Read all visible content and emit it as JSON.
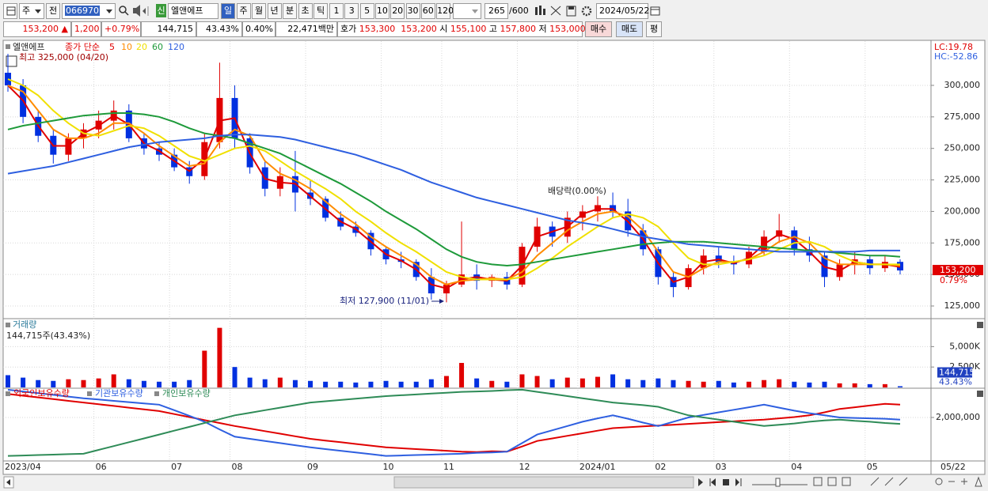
{
  "toolbar": {
    "market": "주",
    "prev": "전",
    "code": "066970",
    "badge": "신",
    "name": "엘앤에프",
    "periods": [
      "일",
      "주",
      "월",
      "년",
      "분",
      "초",
      "틱"
    ],
    "intervals": [
      "1",
      "3",
      "5",
      "10",
      "20",
      "30",
      "60",
      "120"
    ],
    "count": "265",
    "max": "/600",
    "date": "2024/05/22"
  },
  "quote": {
    "price": "153,200",
    "arrow": "▲",
    "change": "1,200",
    "rate": "+0.79%",
    "volume": "144,715",
    "volume_ratio": "43.43%",
    "turnover": "0.40%",
    "amount": "22,471백만",
    "ask_label": "호가",
    "ask": "153,300",
    "bid": "153,200",
    "open_label": "시",
    "open": "155,100",
    "high_label": "고",
    "high": "157,800",
    "low_label": "저",
    "low": "153,000",
    "buy": "매수",
    "sell": "매도",
    "avg": "평"
  },
  "chart_data": [
    {
      "type": "candlestick",
      "name": "엘앤에프",
      "legend_prefix": "종가 단순",
      "up_color": "#e00000",
      "down_color": "#0030e0",
      "categories": [
        "2023/04",
        null,
        null,
        null,
        null,
        null,
        "06",
        null,
        null,
        null,
        null,
        "07",
        null,
        null,
        null,
        "08",
        null,
        null,
        null,
        null,
        "09",
        null,
        null,
        null,
        null,
        "10",
        null,
        null,
        null,
        "11",
        null,
        null,
        null,
        null,
        "12",
        null,
        null,
        null,
        "2024/01",
        null,
        null,
        null,
        null,
        "02",
        null,
        null,
        null,
        "03",
        null,
        null,
        null,
        null,
        "04",
        null,
        null,
        null,
        null,
        "05",
        null,
        null
      ],
      "date_label": "05/22",
      "candles": {
        "open": [
          310000,
          300000,
          275000,
          260000,
          245000,
          258000,
          265000,
          272000,
          280000,
          258000,
          250000,
          245000,
          235000,
          228000,
          255000,
          290000,
          258000,
          235000,
          218000,
          228000,
          215000,
          210000,
          195000,
          188000,
          183000,
          170000,
          162000,
          160000,
          148000,
          135000,
          142000,
          150000,
          145000,
          148000,
          142000,
          172000,
          188000,
          180000,
          195000,
          200000,
          205000,
          200000,
          185000,
          170000,
          148000,
          140000,
          155000,
          165000,
          160000,
          158000,
          168000,
          180000,
          185000,
          170000,
          165000,
          148000,
          158000,
          162000,
          155000,
          160000
        ],
        "high": [
          325000,
          305000,
          280000,
          265000,
          262000,
          270000,
          280000,
          288000,
          285000,
          262000,
          255000,
          250000,
          240000,
          262000,
          318000,
          300000,
          262000,
          240000,
          235000,
          248000,
          225000,
          212000,
          200000,
          192000,
          185000,
          172000,
          168000,
          162000,
          155000,
          145000,
          192000,
          158000,
          150000,
          152000,
          175000,
          195000,
          192000,
          200000,
          205000,
          212000,
          215000,
          210000,
          190000,
          172000,
          152000,
          158000,
          170000,
          172000,
          165000,
          172000,
          185000,
          198000,
          188000,
          180000,
          168000,
          162000,
          168000,
          165000,
          165000,
          162000
        ],
        "low": [
          295000,
          270000,
          255000,
          238000,
          240000,
          250000,
          258000,
          265000,
          255000,
          245000,
          240000,
          232000,
          222000,
          225000,
          250000,
          250000,
          230000,
          212000,
          212000,
          200000,
          205000,
          192000,
          185000,
          180000,
          165000,
          158000,
          155000,
          145000,
          130000,
          127900,
          140000,
          138000,
          140000,
          138000,
          140000,
          168000,
          172000,
          175000,
          185000,
          192000,
          195000,
          180000,
          165000,
          142000,
          132000,
          138000,
          150000,
          155000,
          150000,
          155000,
          165000,
          175000,
          165000,
          160000,
          140000,
          145000,
          150000,
          150000,
          152000,
          150000
        ],
        "close": [
          300000,
          275000,
          260000,
          245000,
          258000,
          265000,
          272000,
          280000,
          258000,
          250000,
          245000,
          235000,
          228000,
          255000,
          290000,
          258000,
          235000,
          218000,
          228000,
          215000,
          210000,
          195000,
          188000,
          183000,
          170000,
          162000,
          160000,
          148000,
          135000,
          142000,
          150000,
          145000,
          148000,
          142000,
          172000,
          188000,
          180000,
          195000,
          200000,
          205000,
          200000,
          185000,
          170000,
          148000,
          140000,
          155000,
          165000,
          160000,
          158000,
          168000,
          180000,
          185000,
          170000,
          165000,
          148000,
          158000,
          162000,
          155000,
          160000,
          153200
        ]
      },
      "series": [
        {
          "name": "5",
          "color": "#e00000",
          "values": [
            300000,
            288000,
            268000,
            252000,
            252000,
            262000,
            268000,
            276000,
            269000,
            254000,
            248000,
            240000,
            232000,
            242000,
            272000,
            274000,
            246000,
            226000,
            223000,
            222000,
            212000,
            202000,
            192000,
            186000,
            176000,
            166000,
            161000,
            154000,
            142000,
            139000,
            146000,
            148000,
            146000,
            145000,
            157000,
            180000,
            184000,
            188000,
            198000,
            202000,
            202000,
            192000,
            178000,
            159000,
            144000,
            148000,
            160000,
            162000,
            159000,
            163000,
            174000,
            182000,
            178000,
            168000,
            156000,
            153000,
            160000,
            158000,
            158000,
            156000
          ]
        },
        {
          "name": "10",
          "color": "#ff8c00",
          "values": [
            300000,
            295000,
            280000,
            265000,
            258000,
            258000,
            262000,
            270000,
            270000,
            262000,
            252000,
            244000,
            236000,
            238000,
            255000,
            265000,
            260000,
            240000,
            230000,
            225000,
            218000,
            208000,
            198000,
            190000,
            180000,
            172000,
            165000,
            158000,
            148000,
            142000,
            145000,
            146000,
            147000,
            146000,
            152000,
            165000,
            175000,
            185000,
            192000,
            198000,
            200000,
            196000,
            185000,
            168000,
            152000,
            148000,
            155000,
            160000,
            160000,
            162000,
            168000,
            176000,
            180000,
            175000,
            163000,
            158000,
            158000,
            158000,
            158000,
            157000
          ]
        },
        {
          "name": "20",
          "color": "#f0e000",
          "values": [
            305000,
            300000,
            292000,
            280000,
            270000,
            262000,
            260000,
            264000,
            268000,
            266000,
            260000,
            252000,
            244000,
            240000,
            245000,
            250000,
            252000,
            248000,
            240000,
            232000,
            225000,
            218000,
            210000,
            200000,
            192000,
            183000,
            175000,
            168000,
            160000,
            152000,
            148000,
            146000,
            146000,
            146000,
            148000,
            155000,
            163000,
            172000,
            180000,
            188000,
            195000,
            198000,
            195000,
            188000,
            175000,
            163000,
            158000,
            158000,
            160000,
            162000,
            165000,
            170000,
            175000,
            176000,
            172000,
            165000,
            160000,
            158000,
            158000,
            158000
          ]
        },
        {
          "name": "60",
          "color": "#1e9a3a",
          "values": [
            265000,
            268000,
            270000,
            272000,
            274000,
            276000,
            277000,
            278000,
            278000,
            277000,
            275000,
            271000,
            266000,
            262000,
            260000,
            258000,
            254000,
            250000,
            246000,
            240000,
            234000,
            228000,
            222000,
            215000,
            208000,
            200000,
            193000,
            186000,
            178000,
            170000,
            164000,
            160000,
            158000,
            157000,
            158000,
            160000,
            162000,
            164000,
            166000,
            168000,
            170000,
            172000,
            174000,
            175000,
            176000,
            176000,
            176000,
            175000,
            174000,
            173000,
            172000,
            171000,
            170000,
            169000,
            168000,
            167000,
            166000,
            165000,
            165000,
            164000
          ]
        },
        {
          "name": "120",
          "color": "#2e5fe0",
          "values": [
            230000,
            232000,
            234000,
            236000,
            239000,
            242000,
            245000,
            248000,
            251000,
            253000,
            255000,
            256000,
            257000,
            258000,
            260000,
            261000,
            261000,
            260000,
            259000,
            257000,
            254000,
            251000,
            248000,
            245000,
            241000,
            237000,
            233000,
            228000,
            223000,
            219000,
            215000,
            211000,
            208000,
            205000,
            202000,
            199000,
            196000,
            193000,
            191000,
            189000,
            186000,
            183000,
            180000,
            178000,
            176000,
            174000,
            173000,
            172000,
            171000,
            170000,
            169000,
            168000,
            168000,
            168000,
            168000,
            168000,
            168000,
            169000,
            169000,
            169000
          ]
        }
      ],
      "ylim": [
        115600,
        335100
      ],
      "yticks": [
        {
          "value": 125000,
          "label": "125,000"
        },
        {
          "value": 150000,
          "label": "150,000"
        },
        {
          "value": 175000,
          "label": "175,000"
        },
        {
          "value": 200000,
          "label": "200,000"
        },
        {
          "value": 225000,
          "label": "225,000"
        },
        {
          "value": 250000,
          "label": "250,000"
        },
        {
          "value": 275000,
          "label": "275,000"
        },
        {
          "value": 300000,
          "label": "300,000"
        }
      ],
      "grid": true,
      "high_label": "최고 325,000 (04/20)",
      "low_label": "최저 127,900 (11/01)",
      "event_label": "배당락(0.00%)",
      "indicators": [
        "LC:19.78",
        "HC:-52.86"
      ],
      "price_tag": "153,200",
      "change_tag": "0.79%"
    },
    {
      "type": "bar",
      "title": "거래량",
      "subtitle": "144,715주(43.43%)",
      "values": [
        1500000,
        1200000,
        900000,
        800000,
        1000000,
        900000,
        1100000,
        1600000,
        1000000,
        800000,
        700000,
        700000,
        900000,
        4500000,
        7300000,
        2500000,
        1200000,
        1000000,
        1200000,
        900000,
        800000,
        700000,
        700000,
        600000,
        700000,
        800000,
        700000,
        700000,
        1000000,
        1400000,
        3000000,
        1100000,
        800000,
        700000,
        1600000,
        1400000,
        1000000,
        1200000,
        1100000,
        1300000,
        1600000,
        1000000,
        900000,
        1100000,
        900000,
        800000,
        700000,
        800000,
        600000,
        700000,
        900000,
        1000000,
        700000,
        600000,
        700000,
        500000,
        500000,
        400000,
        400000,
        144715
      ],
      "ylim": [
        0,
        8330000
      ],
      "yticks": [
        {
          "value": 2500000,
          "label": "2,500K"
        },
        {
          "value": 5000000,
          "label": "5,000K"
        }
      ],
      "value_tag": "144,715",
      "ratio_tag": "43.43%"
    },
    {
      "type": "line",
      "series": [
        {
          "name": "외국인보유수량",
          "color": "#e00000",
          "values": [
            2550000,
            2510000,
            2470000,
            2430000,
            2390000,
            2350000,
            2310000,
            2270000,
            2230000,
            2190000,
            2150000,
            2080000,
            2010000,
            1940000,
            1870000,
            1800000,
            1740000,
            1680000,
            1620000,
            1560000,
            1500000,
            1460000,
            1420000,
            1380000,
            1340000,
            1300000,
            1280000,
            1260000,
            1240000,
            1220000,
            1200000,
            1190000,
            1210000,
            1200000,
            1320000,
            1450000,
            1510000,
            1570000,
            1630000,
            1690000,
            1750000,
            1770000,
            1790000,
            1810000,
            1830000,
            1850000,
            1870000,
            1890000,
            1910000,
            1930000,
            1950000,
            1980000,
            2010000,
            2050000,
            2120000,
            2200000,
            2240000,
            2280000,
            2320000,
            2300000
          ]
        },
        {
          "name": "기관보유수량",
          "color": "#2e5fe0",
          "values": [
            2650000,
            2610000,
            2570000,
            2530000,
            2490000,
            2450000,
            2420000,
            2390000,
            2360000,
            2330000,
            2300000,
            2170000,
            2040000,
            1900000,
            1720000,
            1550000,
            1500000,
            1450000,
            1400000,
            1350000,
            1300000,
            1260000,
            1220000,
            1180000,
            1140000,
            1100000,
            1110000,
            1120000,
            1130000,
            1140000,
            1150000,
            1170000,
            1180000,
            1200000,
            1400000,
            1600000,
            1700000,
            1800000,
            1900000,
            1980000,
            2050000,
            1970000,
            1880000,
            1800000,
            1900000,
            2000000,
            2060000,
            2120000,
            2180000,
            2240000,
            2300000,
            2230000,
            2160000,
            2100000,
            2050000,
            2000000,
            1990000,
            1980000,
            1970000,
            1950000
          ]
        },
        {
          "name": "개인보유수량",
          "color": "#2e8b57",
          "values": [
            1100000,
            1110000,
            1120000,
            1130000,
            1140000,
            1150000,
            1240000,
            1330000,
            1420000,
            1510000,
            1600000,
            1690000,
            1780000,
            1870000,
            1960000,
            2050000,
            2110000,
            2170000,
            2230000,
            2290000,
            2350000,
            2380000,
            2410000,
            2440000,
            2470000,
            2500000,
            2520000,
            2540000,
            2560000,
            2580000,
            2600000,
            2610000,
            2620000,
            2640000,
            2650000,
            2600000,
            2550000,
            2500000,
            2450000,
            2400000,
            2350000,
            2320000,
            2290000,
            2250000,
            2150000,
            2050000,
            2000000,
            1950000,
            1900000,
            1850000,
            1800000,
            1830000,
            1860000,
            1900000,
            1930000,
            1950000,
            1920000,
            1900000,
            1870000,
            1850000
          ]
        }
      ],
      "ylim": [
        1000000,
        2667000
      ],
      "yticks": [
        {
          "value": 2000000,
          "label": "2,000,000"
        }
      ]
    }
  ]
}
